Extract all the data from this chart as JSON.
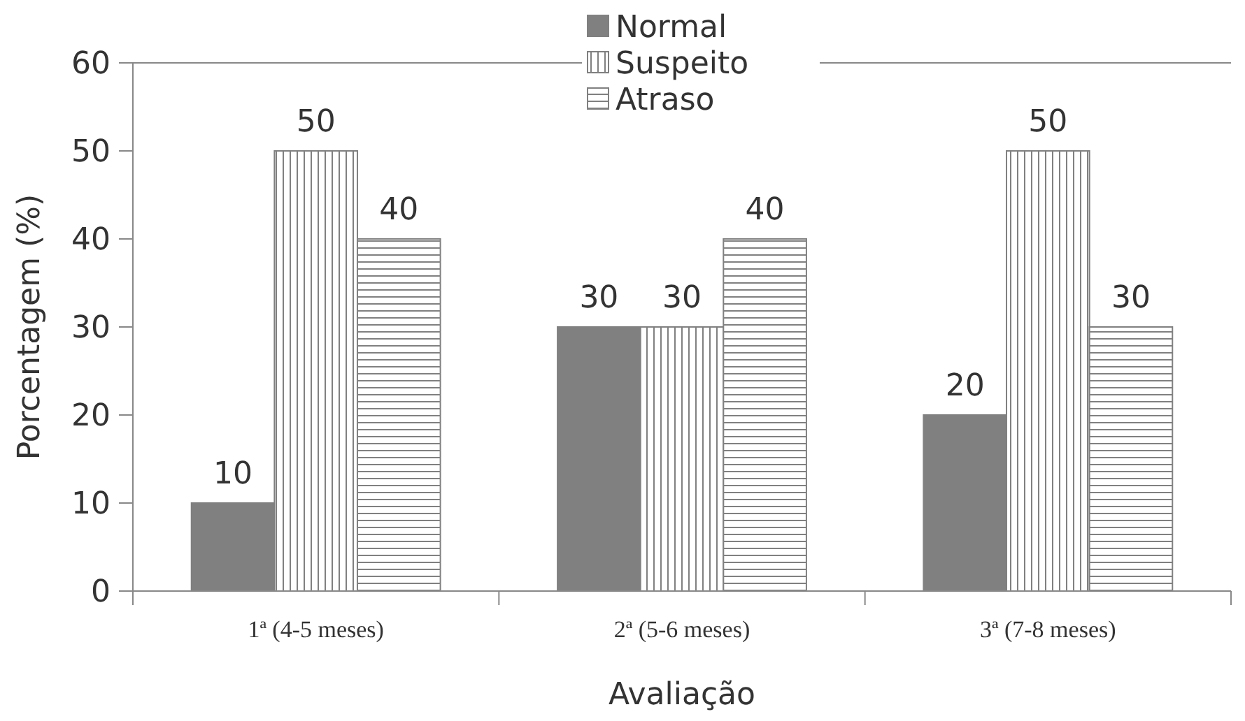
{
  "chart_data": {
    "type": "bar",
    "xlabel": "Avaliação",
    "ylabel": "Porcentagem (%)",
    "categories": [
      "1ª (4-5 meses)",
      "2ª (5-6 meses)",
      "3ª (7-8 meses)"
    ],
    "series": [
      {
        "name": "Normal",
        "color": "#808080",
        "values": [
          10,
          30,
          20
        ]
      },
      {
        "name": "Suspeito",
        "color": "#808080",
        "values": [
          50,
          30,
          50
        ]
      },
      {
        "name": "Atraso",
        "color": "#808080",
        "values": [
          40,
          40,
          30
        ]
      }
    ],
    "ylim": [
      0,
      60
    ],
    "yticks": [
      0,
      10,
      20,
      30,
      40,
      50,
      60
    ],
    "grid": false,
    "legend": "top",
    "data_labels": true
  }
}
